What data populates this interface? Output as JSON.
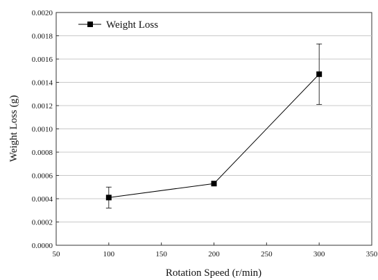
{
  "chart_data": {
    "type": "line",
    "title": "",
    "xlabel": "Rotation Speed (r/min)",
    "ylabel": "Weight Loss (g)",
    "xlim": [
      50,
      350
    ],
    "ylim": [
      0,
      0.002
    ],
    "x_ticks": [
      "50",
      "100",
      "150",
      "200",
      "250",
      "300",
      "350"
    ],
    "y_ticks": [
      "0.0000",
      "0.0002",
      "0.0004",
      "0.0006",
      "0.0008",
      "0.0010",
      "0.0012",
      "0.0014",
      "0.0016",
      "0.0018",
      "0.0020"
    ],
    "grid": "horizontal",
    "legend_position": "top-left",
    "series": [
      {
        "name": "Weight Loss",
        "color": "#000000",
        "marker": "square",
        "points": [
          {
            "x": 100,
            "y": 0.00041,
            "err": 9e-05
          },
          {
            "x": 200,
            "y": 0.00053,
            "err": 0
          },
          {
            "x": 300,
            "y": 0.00147,
            "err": 0.00026
          }
        ]
      }
    ]
  }
}
